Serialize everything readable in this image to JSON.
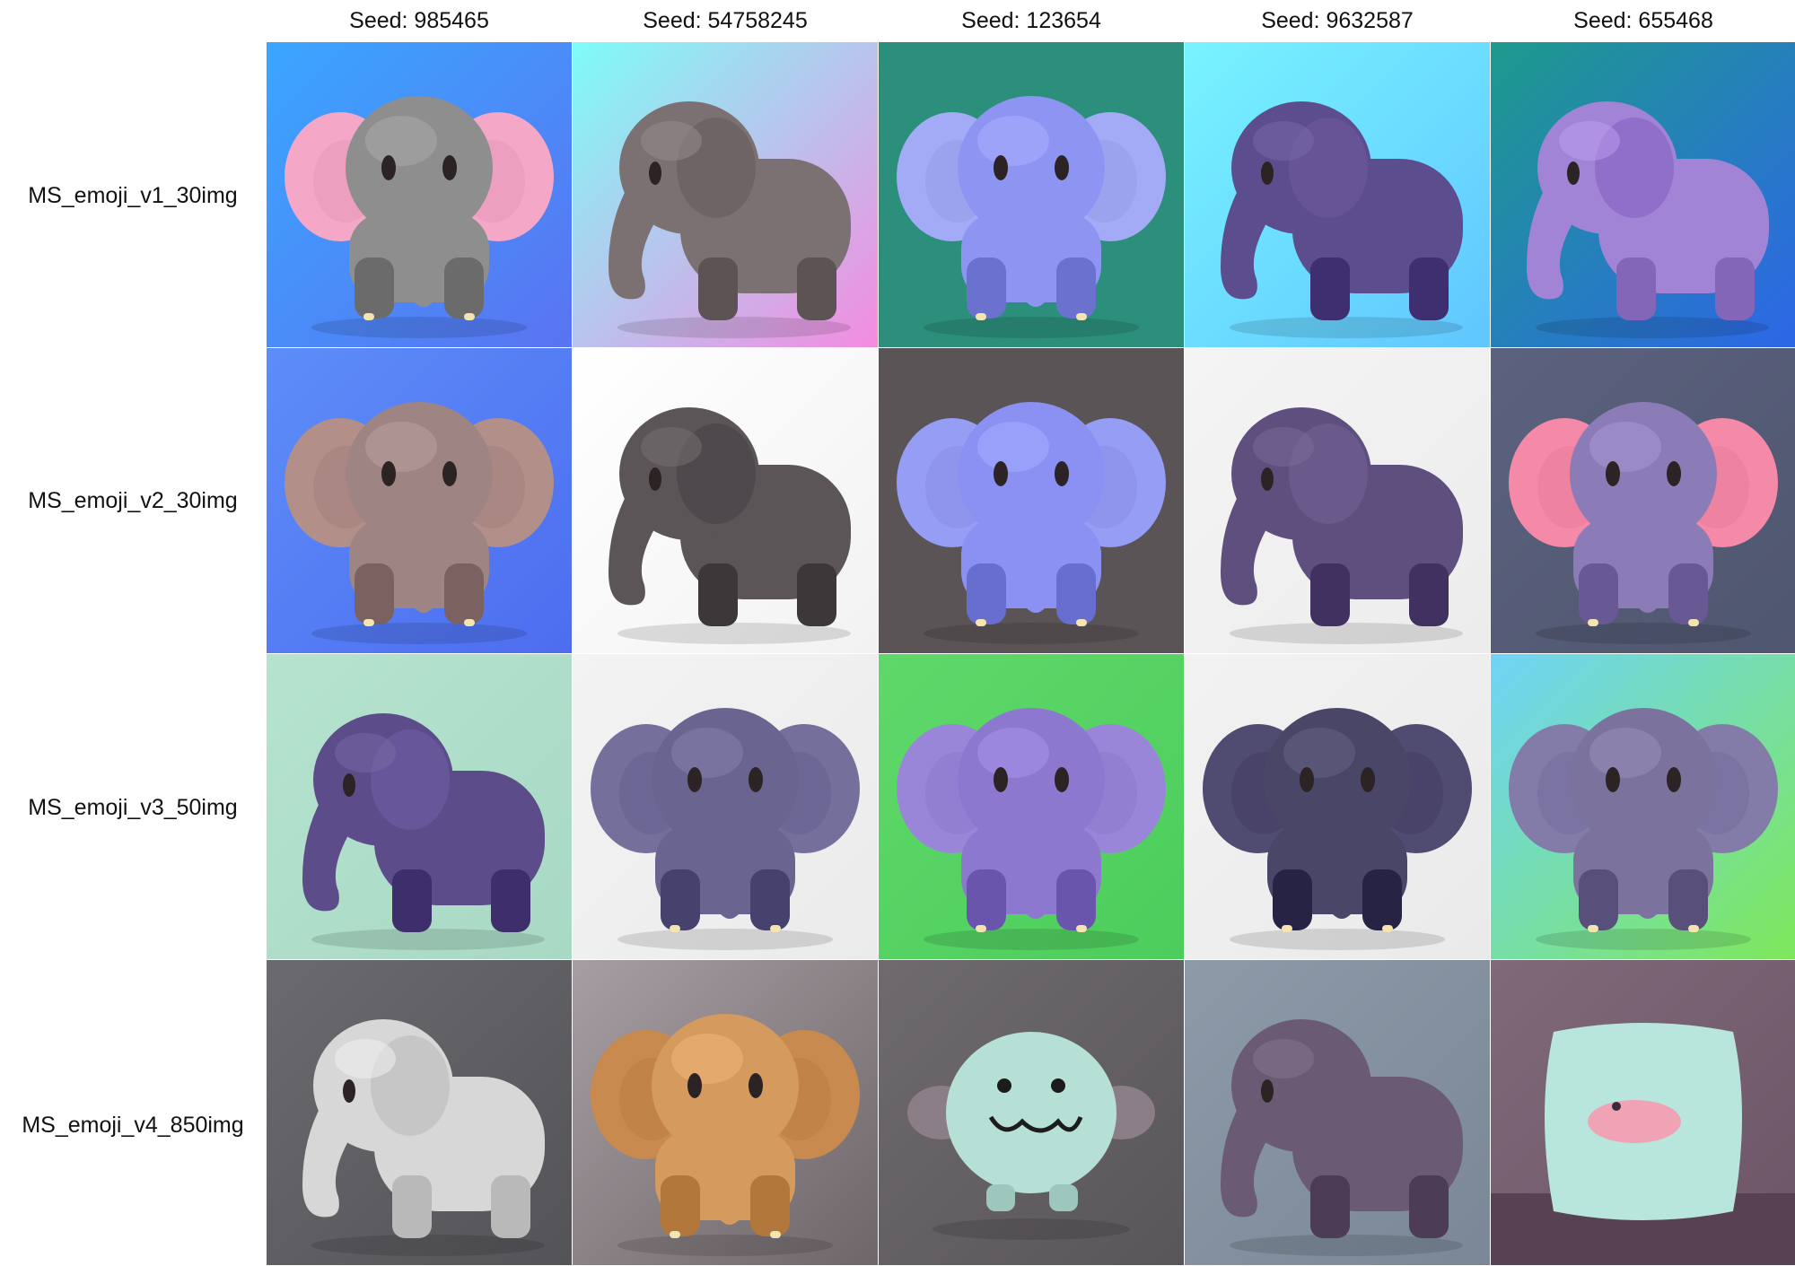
{
  "columns": [
    {
      "seed_label": "Seed: 985465"
    },
    {
      "seed_label": "Seed: 54758245"
    },
    {
      "seed_label": "Seed: 123654"
    },
    {
      "seed_label": "Seed: 9632587"
    },
    {
      "seed_label": "Seed: 655468"
    }
  ],
  "rows": [
    {
      "label": "MS_emoji_v1_30img"
    },
    {
      "label": "MS_emoji_v2_30img"
    },
    {
      "label": "MS_emoji_v3_50img"
    },
    {
      "label": "MS_emoji_v4_850img"
    }
  ],
  "cells": [
    [
      {
        "bg1": "#3aa6ff",
        "bg2": "#5a73f2",
        "body": "#8e8e8e",
        "ear": "#f4a7c6",
        "style": "front",
        "subject": "elephant"
      },
      {
        "bg1": "#7efcf8",
        "bg2": "#f48be0",
        "body": "#7c7172",
        "ear": "#6e6466",
        "style": "side",
        "subject": "elephant"
      },
      {
        "bg1": "#2c8f7b",
        "bg2": "#2c8f7b",
        "body": "#8e94f2",
        "ear": "#a3abf7",
        "style": "front",
        "subject": "elephant"
      },
      {
        "bg1": "#78f3ff",
        "bg2": "#60c6ff",
        "body": "#5c4d8e",
        "ear": "#665497",
        "style": "side",
        "subject": "elephant"
      },
      {
        "bg1": "#1d9a8c",
        "bg2": "#2d66e8",
        "body": "#a184d6",
        "ear": "#8f6fc9",
        "style": "side",
        "subject": "elephant"
      }
    ],
    [
      {
        "bg1": "#5d8df8",
        "bg2": "#4d6df0",
        "body": "#9e8483",
        "ear": "#b38f8a",
        "style": "front",
        "subject": "elephant"
      },
      {
        "bg1": "#ffffff",
        "bg2": "#f2f2f2",
        "body": "#5b5558",
        "ear": "#4e494c",
        "style": "side",
        "subject": "elephant"
      },
      {
        "bg1": "#5a5457",
        "bg2": "#5a5457",
        "body": "#8a91f2",
        "ear": "#969df5",
        "style": "front",
        "subject": "elephant"
      },
      {
        "bg1": "#f4f4f4",
        "bg2": "#ececec",
        "body": "#5f4f7e",
        "ear": "#6a5a8c",
        "style": "side",
        "subject": "elephant"
      },
      {
        "bg1": "#5c627e",
        "bg2": "#4f566f",
        "body": "#8b7bb6",
        "ear": "#f58aa8",
        "style": "front",
        "subject": "elephant"
      }
    ],
    [
      {
        "bg1": "#b5e3cf",
        "bg2": "#a8d9c4",
        "body": "#5c4d8a",
        "ear": "#66579a",
        "style": "side",
        "subject": "elephant"
      },
      {
        "bg1": "#f3f3f3",
        "bg2": "#ebebeb",
        "body": "#6a6490",
        "ear": "#756f9c",
        "style": "front",
        "subject": "elephant"
      },
      {
        "bg1": "#5fd86a",
        "bg2": "#4ccd5c",
        "body": "#8d78cf",
        "ear": "#9a86d8",
        "style": "front",
        "subject": "elephant"
      },
      {
        "bg1": "#f2f2f2",
        "bg2": "#eaeaea",
        "body": "#4a4668",
        "ear": "#504b70",
        "style": "front",
        "subject": "elephant"
      },
      {
        "bg1": "#6fd4f7",
        "bg2": "#7ee85a",
        "body": "#7b739e",
        "ear": "#837ba8",
        "style": "front",
        "subject": "elephant"
      }
    ],
    [
      {
        "bg1": "#6b6a6e",
        "bg2": "#545357",
        "body": "#d7d7d7",
        "ear": "#c6c6c6",
        "style": "side",
        "subject": "elephant"
      },
      {
        "bg1": "#a69ea2",
        "bg2": "#6e6669",
        "body": "#d49a5e",
        "ear": "#c88a4e",
        "style": "front",
        "subject": "elephant"
      },
      {
        "bg1": "#6e6a6e",
        "bg2": "#59565a",
        "body": "#b6e0d6",
        "ear": "#8c7e86",
        "style": "blob",
        "subject": "creature"
      },
      {
        "bg1": "#8d9aa8",
        "bg2": "#7a8797",
        "body": "#6a5a74",
        "ear": "#6a5a74",
        "style": "side",
        "subject": "elephant"
      },
      {
        "bg1": "#806a7a",
        "bg2": "#6b5566",
        "body": "#b8e5dc",
        "ear": "#f0a3b5",
        "style": "pillow",
        "subject": "pillow"
      }
    ]
  ]
}
